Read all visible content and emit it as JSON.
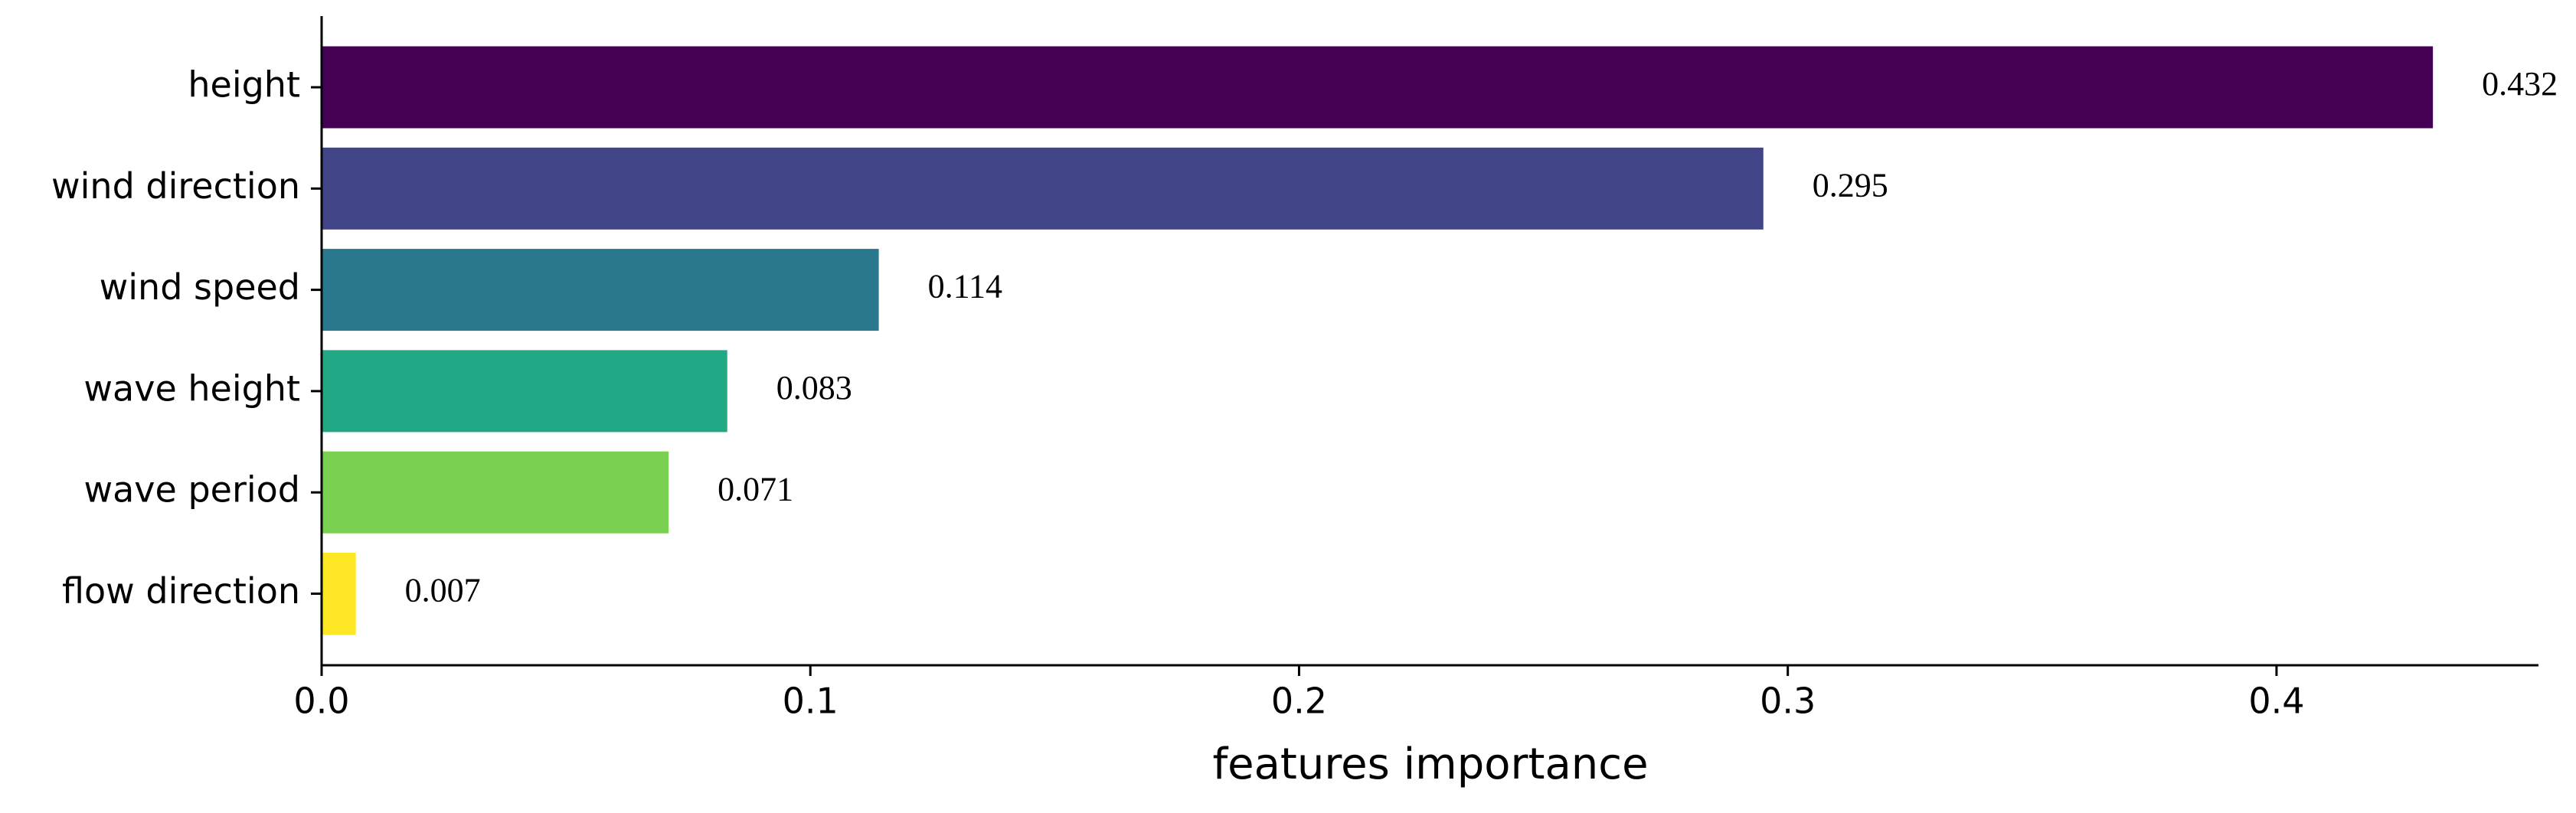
{
  "chart_data": {
    "type": "barh",
    "xlabel": "features importance",
    "categories": [
      "height",
      "wind direction",
      "wind speed",
      "wave height",
      "wave period",
      "flow direction"
    ],
    "values": [
      0.432,
      0.295,
      0.114,
      0.083,
      0.071,
      0.007
    ],
    "colors": [
      "#440154",
      "#414487",
      "#2a788e",
      "#22a884",
      "#7ad151",
      "#fde725"
    ],
    "xlim": [
      0,
      0.4536
    ],
    "xticks": [
      {
        "value": 0,
        "label": "0.0"
      },
      0.1,
      0.2,
      0.3,
      0.4
    ],
    "grid": false
  }
}
